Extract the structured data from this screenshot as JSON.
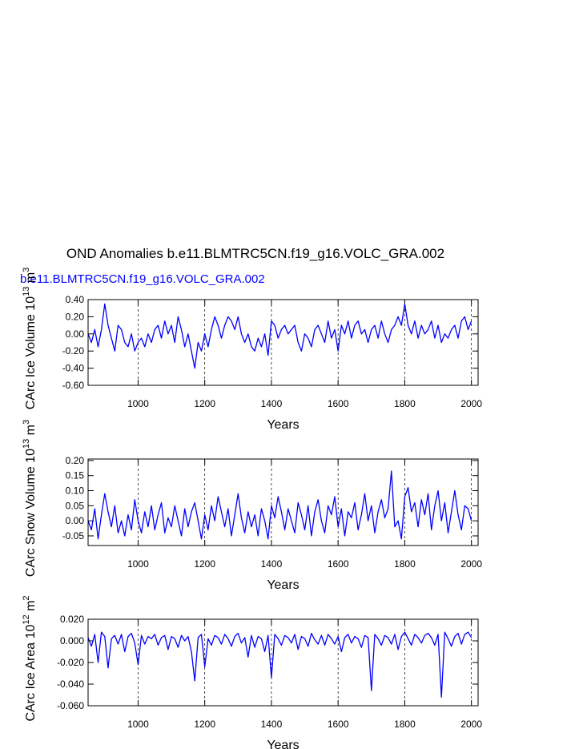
{
  "title": "OND Anomalies b.e11.BLMTRC5CN.f19_g16.VOLC_GRA.002",
  "subtitle": "b.e11.BLMTRC5CN.f19_g16.VOLC_GRA.002",
  "chart_data": [
    {
      "type": "line",
      "ylabel": [
        "CArc Ice Volume 10",
        "13",
        " m",
        "3"
      ],
      "xlabel": "Years",
      "color": "#0000ff",
      "grid": true,
      "xlim": [
        850,
        2020
      ],
      "xticks": [
        1000,
        1200,
        1400,
        1600,
        1800,
        2000
      ],
      "ylim": [
        -0.6,
        0.4
      ],
      "yticks": [
        {
          "value": -0.6,
          "label": "-0.60"
        },
        {
          "value": -0.4,
          "label": "-0.40"
        },
        {
          "value": -0.2,
          "label": "-0.20"
        },
        {
          "value": 0,
          "label": "0.00"
        },
        {
          "value": 0.2,
          "label": "0.20"
        },
        {
          "value": 0.4,
          "label": "0.40"
        }
      ],
      "x": [
        850,
        860,
        870,
        880,
        890,
        900,
        910,
        920,
        930,
        940,
        950,
        960,
        970,
        980,
        990,
        1000,
        1010,
        1020,
        1030,
        1040,
        1050,
        1060,
        1070,
        1080,
        1090,
        1100,
        1110,
        1120,
        1130,
        1140,
        1150,
        1160,
        1170,
        1180,
        1190,
        1200,
        1210,
        1220,
        1230,
        1240,
        1250,
        1260,
        1270,
        1280,
        1290,
        1300,
        1310,
        1320,
        1330,
        1340,
        1350,
        1360,
        1370,
        1380,
        1390,
        1400,
        1410,
        1420,
        1430,
        1440,
        1450,
        1460,
        1470,
        1480,
        1490,
        1500,
        1510,
        1520,
        1530,
        1540,
        1550,
        1560,
        1570,
        1580,
        1590,
        1600,
        1610,
        1620,
        1630,
        1640,
        1650,
        1660,
        1670,
        1680,
        1690,
        1700,
        1710,
        1720,
        1730,
        1740,
        1750,
        1760,
        1770,
        1780,
        1790,
        1800,
        1810,
        1820,
        1830,
        1840,
        1850,
        1860,
        1870,
        1880,
        1890,
        1900,
        1910,
        1920,
        1930,
        1940,
        1950,
        1960,
        1970,
        1980,
        1990,
        2000
      ],
      "values": [
        0.0,
        -0.1,
        0.05,
        -0.15,
        0.05,
        0.35,
        0.1,
        -0.05,
        -0.2,
        0.1,
        0.05,
        -0.1,
        -0.15,
        0.0,
        -0.2,
        -0.1,
        -0.05,
        -0.15,
        0.0,
        -0.1,
        0.05,
        0.1,
        -0.05,
        0.15,
        0.0,
        0.1,
        -0.1,
        0.2,
        0.05,
        -0.15,
        0.0,
        -0.2,
        -0.4,
        -0.1,
        -0.2,
        0.0,
        -0.15,
        0.05,
        0.2,
        0.1,
        -0.05,
        0.1,
        0.2,
        0.15,
        0.05,
        0.2,
        0.0,
        -0.1,
        0.0,
        -0.15,
        -0.2,
        -0.05,
        -0.15,
        0.0,
        -0.25,
        0.15,
        0.1,
        -0.05,
        0.05,
        0.1,
        0.0,
        0.05,
        0.1,
        -0.1,
        -0.2,
        0.0,
        -0.05,
        -0.15,
        0.05,
        0.1,
        0.0,
        -0.1,
        0.15,
        -0.05,
        0.05,
        -0.2,
        0.1,
        0.0,
        0.15,
        -0.05,
        0.1,
        0.15,
        0.0,
        0.05,
        -0.1,
        0.05,
        0.1,
        -0.05,
        0.15,
        0.0,
        -0.1,
        0.05,
        0.1,
        0.2,
        0.1,
        0.35,
        0.1,
        0.0,
        0.15,
        -0.05,
        0.1,
        0.0,
        0.05,
        0.15,
        -0.05,
        0.1,
        -0.1,
        0.0,
        -0.05,
        0.05,
        0.1,
        -0.05,
        0.15,
        0.2,
        0.05,
        0.15
      ]
    },
    {
      "type": "line",
      "ylabel": [
        "CArc Snow Volume 10",
        "13",
        " m",
        "3"
      ],
      "xlabel": "Years",
      "color": "#0000ff",
      "grid": true,
      "xlim": [
        850,
        2020
      ],
      "xticks": [
        1000,
        1200,
        1400,
        1600,
        1800,
        2000
      ],
      "ylim": [
        -0.082,
        0.205
      ],
      "yticks": [
        {
          "value": -0.05,
          "label": "-0.05"
        },
        {
          "value": 0,
          "label": "0.00"
        },
        {
          "value": 0.05,
          "label": "0.05"
        },
        {
          "value": 0.1,
          "label": "0.10"
        },
        {
          "value": 0.15,
          "label": "0.15"
        },
        {
          "value": 0.2,
          "label": "0.20"
        }
      ],
      "x": [
        850,
        860,
        870,
        880,
        890,
        900,
        910,
        920,
        930,
        940,
        950,
        960,
        970,
        980,
        990,
        1000,
        1010,
        1020,
        1030,
        1040,
        1050,
        1060,
        1070,
        1080,
        1090,
        1100,
        1110,
        1120,
        1130,
        1140,
        1150,
        1160,
        1170,
        1180,
        1190,
        1200,
        1210,
        1220,
        1230,
        1240,
        1250,
        1260,
        1270,
        1280,
        1290,
        1300,
        1310,
        1320,
        1330,
        1340,
        1350,
        1360,
        1370,
        1380,
        1390,
        1400,
        1410,
        1420,
        1430,
        1440,
        1450,
        1460,
        1470,
        1480,
        1490,
        1500,
        1510,
        1520,
        1530,
        1540,
        1550,
        1560,
        1570,
        1580,
        1590,
        1600,
        1610,
        1620,
        1630,
        1640,
        1650,
        1660,
        1670,
        1680,
        1690,
        1700,
        1710,
        1720,
        1730,
        1740,
        1750,
        1760,
        1770,
        1780,
        1790,
        1800,
        1810,
        1820,
        1830,
        1840,
        1850,
        1860,
        1870,
        1880,
        1890,
        1900,
        1910,
        1920,
        1930,
        1940,
        1950,
        1960,
        1970,
        1980,
        1990,
        2000
      ],
      "values": [
        0.0,
        -0.03,
        0.04,
        -0.06,
        0.02,
        0.09,
        0.03,
        -0.02,
        0.05,
        -0.04,
        0.0,
        -0.05,
        0.02,
        -0.03,
        0.07,
        0.0,
        -0.04,
        0.03,
        -0.02,
        0.05,
        -0.03,
        0.02,
        0.06,
        -0.04,
        0.01,
        -0.02,
        0.05,
        0.0,
        -0.05,
        0.04,
        -0.02,
        0.03,
        0.06,
        0.0,
        -0.06,
        0.02,
        -0.03,
        0.05,
        0.0,
        0.08,
        0.03,
        -0.02,
        0.04,
        -0.05,
        0.02,
        0.09,
        0.01,
        -0.04,
        0.03,
        -0.02,
        0.02,
        -0.05,
        0.04,
        0.0,
        -0.06,
        0.05,
        0.01,
        0.08,
        0.03,
        -0.03,
        0.04,
        0.0,
        -0.04,
        0.06,
        0.02,
        -0.03,
        0.05,
        -0.05,
        0.03,
        0.07,
        0.0,
        -0.04,
        0.05,
        0.02,
        0.08,
        -0.02,
        0.04,
        -0.05,
        0.03,
        0.01,
        0.06,
        -0.03,
        0.02,
        0.09,
        0.0,
        0.05,
        -0.04,
        0.03,
        0.07,
        0.01,
        0.04,
        0.165,
        -0.02,
        0.0,
        -0.06,
        0.08,
        0.11,
        0.03,
        0.06,
        -0.02,
        0.07,
        0.02,
        0.09,
        -0.03,
        0.05,
        0.1,
        0.0,
        0.06,
        -0.04,
        0.03,
        0.1,
        0.02,
        -0.03,
        0.05,
        0.04,
        0.0
      ]
    },
    {
      "type": "line",
      "ylabel": [
        "CArc Ice Area 10",
        "12",
        " m",
        "2"
      ],
      "xlabel": "Years",
      "color": "#0000ff",
      "grid": true,
      "xlim": [
        850,
        2020
      ],
      "xticks": [
        1000,
        1200,
        1400,
        1600,
        1800,
        2000
      ],
      "ylim": [
        -0.06,
        0.02
      ],
      "yticks": [
        {
          "value": -0.06,
          "label": "-0.060"
        },
        {
          "value": -0.04,
          "label": "-0.040"
        },
        {
          "value": -0.02,
          "label": "-0.020"
        },
        {
          "value": 0,
          "label": "0.000"
        },
        {
          "value": 0.02,
          "label": "0.020"
        }
      ],
      "x": [
        850,
        860,
        870,
        880,
        890,
        900,
        910,
        920,
        930,
        940,
        950,
        960,
        970,
        980,
        990,
        1000,
        1010,
        1020,
        1030,
        1040,
        1050,
        1060,
        1070,
        1080,
        1090,
        1100,
        1110,
        1120,
        1130,
        1140,
        1150,
        1160,
        1170,
        1180,
        1190,
        1200,
        1210,
        1220,
        1230,
        1240,
        1250,
        1260,
        1270,
        1280,
        1290,
        1300,
        1310,
        1320,
        1330,
        1340,
        1350,
        1360,
        1370,
        1380,
        1390,
        1400,
        1410,
        1420,
        1430,
        1440,
        1450,
        1460,
        1470,
        1480,
        1490,
        1500,
        1510,
        1520,
        1530,
        1540,
        1550,
        1560,
        1570,
        1580,
        1590,
        1600,
        1610,
        1620,
        1630,
        1640,
        1650,
        1660,
        1670,
        1680,
        1690,
        1700,
        1710,
        1720,
        1730,
        1740,
        1750,
        1760,
        1770,
        1780,
        1790,
        1800,
        1810,
        1820,
        1830,
        1840,
        1850,
        1860,
        1870,
        1880,
        1890,
        1900,
        1910,
        1920,
        1930,
        1940,
        1950,
        1960,
        1970,
        1980,
        1990,
        2000
      ],
      "values": [
        0.003,
        -0.005,
        0.006,
        -0.02,
        0.008,
        0.004,
        -0.025,
        0.002,
        0.005,
        -0.003,
        0.006,
        -0.01,
        0.004,
        0.007,
        -0.002,
        -0.022,
        0.005,
        -0.003,
        0.004,
        0.002,
        0.006,
        -0.004,
        0.003,
        0.005,
        -0.008,
        0.004,
        0.002,
        -0.006,
        0.005,
        0.0,
        0.004,
        -0.01,
        -0.037,
        0.003,
        0.006,
        -0.024,
        0.002,
        -0.004,
        0.005,
        0.003,
        -0.003,
        0.006,
        0.002,
        -0.005,
        0.004,
        0.007,
        -0.002,
        0.003,
        -0.015,
        0.005,
        -0.006,
        0.004,
        0.002,
        -0.01,
        0.005,
        -0.034,
        0.006,
        0.002,
        -0.004,
        0.005,
        0.003,
        -0.002,
        0.006,
        -0.008,
        0.004,
        0.002,
        -0.005,
        0.007,
        0.001,
        -0.003,
        0.005,
        -0.004,
        0.006,
        0.002,
        -0.003,
        0.004,
        -0.01,
        0.003,
        0.006,
        -0.002,
        0.004,
        0.002,
        -0.006,
        0.005,
        0.003,
        -0.046,
        0.006,
        0.002,
        -0.004,
        0.005,
        0.003,
        -0.003,
        0.006,
        -0.008,
        0.004,
        0.008,
        0.002,
        -0.004,
        0.006,
        0.003,
        -0.002,
        0.005,
        0.007,
        0.003,
        -0.004,
        0.006,
        -0.052,
        0.008,
        0.002,
        -0.005,
        0.004,
        0.007,
        -0.003,
        0.006,
        0.008,
        0.003
      ]
    }
  ]
}
